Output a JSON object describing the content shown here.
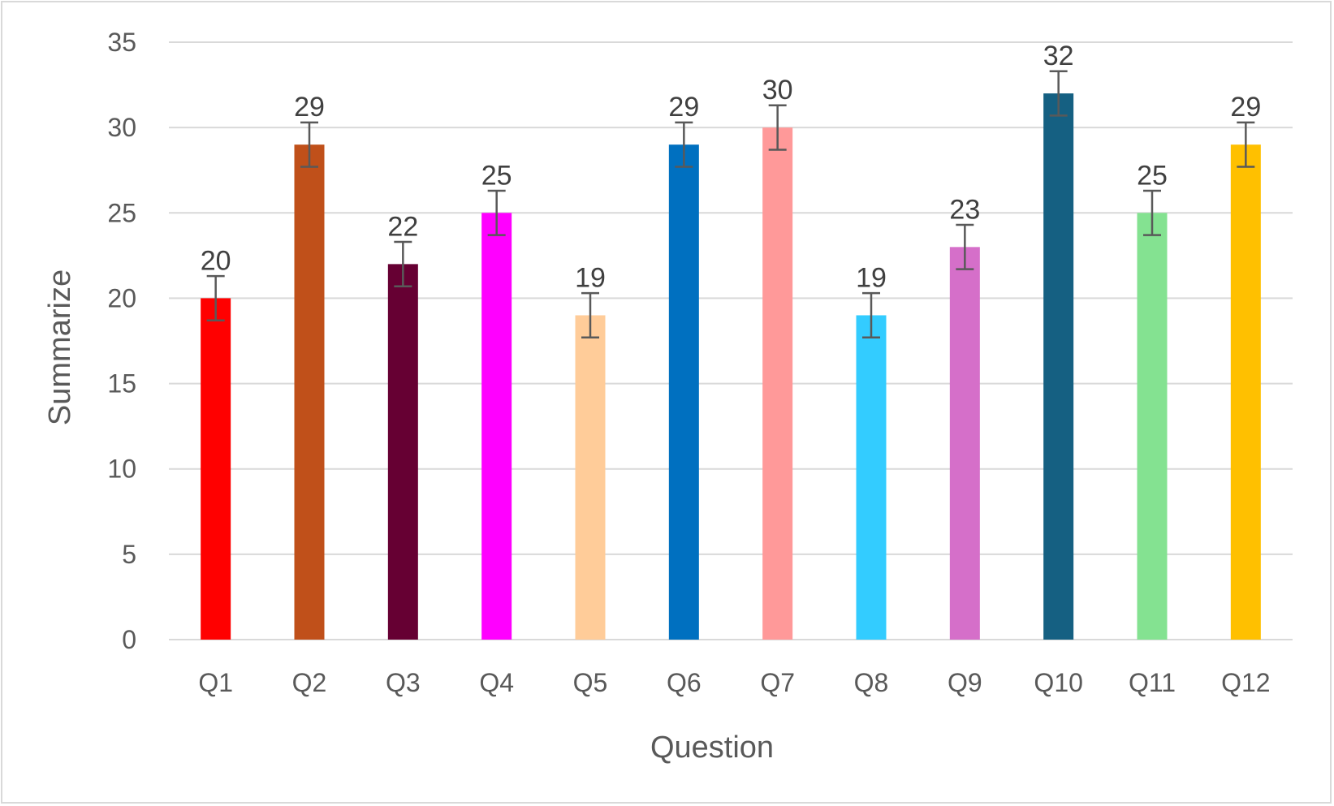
{
  "chart_data": {
    "type": "bar",
    "title": "",
    "xlabel": "Question",
    "ylabel": "Summarize",
    "ylim": [
      0,
      35
    ],
    "yticks": [
      0,
      5,
      10,
      15,
      20,
      25,
      30,
      35
    ],
    "grid": true,
    "legend": "none",
    "categories": [
      "Q1",
      "Q2",
      "Q3",
      "Q4",
      "Q5",
      "Q6",
      "Q7",
      "Q8",
      "Q9",
      "Q10",
      "Q11",
      "Q12"
    ],
    "values": [
      20,
      29,
      22,
      25,
      19,
      29,
      30,
      19,
      23,
      32,
      25,
      29
    ],
    "data_labels": [
      "20",
      "29",
      "22",
      "25",
      "19",
      "29",
      "30",
      "19",
      "23",
      "32",
      "25",
      "29"
    ],
    "error": [
      1.3,
      1.3,
      1.3,
      1.3,
      1.3,
      1.3,
      1.3,
      1.3,
      1.3,
      1.3,
      1.3,
      1.3
    ],
    "colors": [
      "#ff0000",
      "#c0501a",
      "#660033",
      "#ff00ff",
      "#ffcc99",
      "#0070c0",
      "#ff9999",
      "#33ccff",
      "#d56fc9",
      "#156082",
      "#84e291",
      "#ffc000"
    ]
  }
}
